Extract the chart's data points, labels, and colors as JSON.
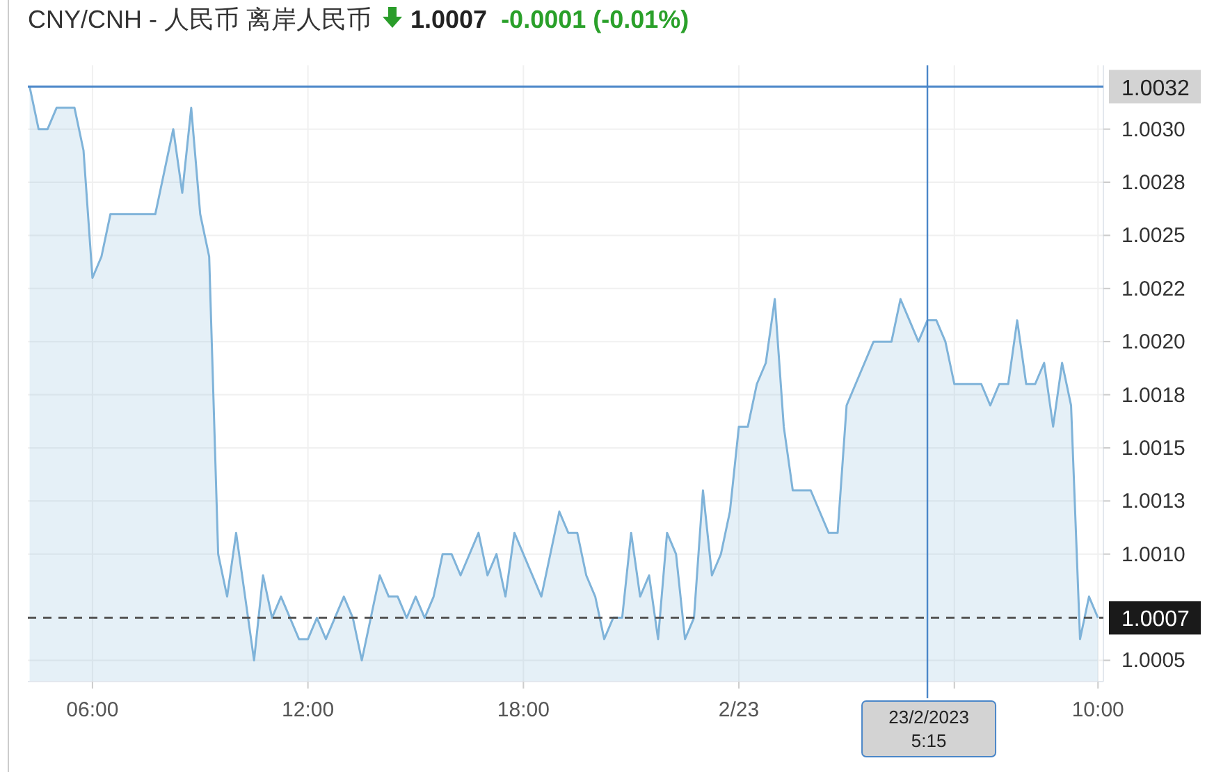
{
  "chart_data": {
    "type": "area",
    "title": "CNY/CNH - 人民币 离岸人民币",
    "annotations": [
      "1.0007",
      "-0.0001 (-0.01%)"
    ],
    "series": [
      {
        "color": "#7fb3d9",
        "x": [
          "2023-02-22T04:15",
          "2023-02-22T04:30",
          "2023-02-22T04:45",
          "2023-02-22T05:00",
          "2023-02-22T05:30",
          "2023-02-22T05:45",
          "2023-02-22T06:00",
          "2023-02-22T06:15",
          "2023-02-22T06:30",
          "2023-02-22T07:45",
          "2023-02-22T08:15",
          "2023-02-22T08:30",
          "2023-02-22T08:45",
          "2023-02-22T09:00",
          "2023-02-22T09:15",
          "2023-02-22T09:30",
          "2023-02-22T09:45",
          "2023-02-22T10:00",
          "2023-02-22T10:30",
          "2023-02-22T10:45",
          "2023-02-22T11:00",
          "2023-02-22T11:15",
          "2023-02-22T11:45",
          "2023-02-22T12:00",
          "2023-02-22T12:15",
          "2023-02-22T12:30",
          "2023-02-22T13:00",
          "2023-02-22T13:15",
          "2023-02-22T13:30",
          "2023-02-22T14:00",
          "2023-02-22T14:15",
          "2023-02-22T14:30",
          "2023-02-22T14:45",
          "2023-02-22T15:00",
          "2023-02-22T15:15",
          "2023-02-22T15:30",
          "2023-02-22T15:45",
          "2023-02-22T16:00",
          "2023-02-22T16:15",
          "2023-02-22T16:45",
          "2023-02-22T17:00",
          "2023-02-22T17:15",
          "2023-02-22T17:30",
          "2023-02-22T17:45",
          "2023-02-22T18:30",
          "2023-02-22T19:00",
          "2023-02-22T19:15",
          "2023-02-22T19:30",
          "2023-02-22T19:45",
          "2023-02-22T20:00",
          "2023-02-22T20:15",
          "2023-02-22T20:30",
          "2023-02-22T20:45",
          "2023-02-22T21:00",
          "2023-02-22T21:15",
          "2023-02-22T21:30",
          "2023-02-22T21:45",
          "2023-02-22T22:00",
          "2023-02-22T22:15",
          "2023-02-22T22:30",
          "2023-02-22T22:45",
          "2023-02-22T23:00",
          "2023-02-22T23:15",
          "2023-02-22T23:30",
          "2023-02-22T23:45",
          "2023-02-23T00:00",
          "2023-02-23T00:15",
          "2023-02-23T00:30",
          "2023-02-23T00:45",
          "2023-02-23T01:00",
          "2023-02-23T01:15",
          "2023-02-23T01:30",
          "2023-02-23T02:00",
          "2023-02-23T02:30",
          "2023-02-23T02:45",
          "2023-02-23T03:00",
          "2023-02-23T03:15",
          "2023-02-23T03:45",
          "2023-02-23T04:15",
          "2023-02-23T04:30",
          "2023-02-23T05:00",
          "2023-02-23T05:15",
          "2023-02-23T05:30",
          "2023-02-23T05:45",
          "2023-02-23T06:00",
          "2023-02-23T06:45",
          "2023-02-23T07:00",
          "2023-02-23T07:15",
          "2023-02-23T07:30",
          "2023-02-23T07:45",
          "2023-02-23T08:00",
          "2023-02-23T08:15",
          "2023-02-23T08:30",
          "2023-02-23T08:45",
          "2023-02-23T09:00",
          "2023-02-23T09:15",
          "2023-02-23T09:30",
          "2023-02-23T09:45",
          "2023-02-23T10:00"
        ],
        "values": [
          1.0032,
          1.003,
          1.003,
          1.0031,
          1.0031,
          1.0029,
          1.0023,
          1.0024,
          1.0026,
          1.0026,
          1.003,
          1.0027,
          1.0031,
          1.0026,
          1.0024,
          1.001,
          1.0008,
          1.0011,
          1.0005,
          1.0009,
          1.0007,
          1.0008,
          1.0006,
          1.0006,
          1.0007,
          1.0006,
          1.0008,
          1.0007,
          1.0005,
          1.0009,
          1.0008,
          1.0008,
          1.0007,
          1.0008,
          1.0007,
          1.0008,
          1.001,
          1.001,
          1.0009,
          1.0011,
          1.0009,
          1.001,
          1.0008,
          1.0011,
          1.0008,
          1.0012,
          1.0011,
          1.0011,
          1.0009,
          1.0008,
          1.0006,
          1.0007,
          1.0007,
          1.0011,
          1.0008,
          1.0009,
          1.0006,
          1.0011,
          1.001,
          1.0006,
          1.0007,
          1.0013,
          1.0009,
          1.001,
          1.0012,
          1.0016,
          1.0016,
          1.0018,
          1.0019,
          1.0022,
          1.0016,
          1.0013,
          1.0013,
          1.0011,
          1.0011,
          1.0017,
          1.0018,
          1.002,
          1.002,
          1.0022,
          1.002,
          1.0021,
          1.0021,
          1.002,
          1.0018,
          1.0018,
          1.0017,
          1.0018,
          1.0018,
          1.0021,
          1.0018,
          1.0018,
          1.0019,
          1.0016,
          1.0019,
          1.0017,
          1.0006,
          1.0008,
          1.0007
        ]
      }
    ],
    "xlim": [
      "2023-02-22T04:12",
      "2023-02-23T10:09"
    ],
    "xticks": [
      {
        "value": "2023-02-22T06:00",
        "label": "06:00"
      },
      {
        "value": "2023-02-22T12:00",
        "label": "12:00"
      },
      {
        "value": "2023-02-22T18:00",
        "label": "18:00"
      },
      {
        "value": "2023-02-23T00:00",
        "label": "2/23"
      },
      {
        "value": "2023-02-23T06:00",
        "label": null
      },
      {
        "value": "2023-02-23T10:00",
        "label": "10:00"
      }
    ],
    "ylim": [
      1.0004,
      1.0033
    ],
    "yticks": [
      1.0005,
      {
        "value": 1.001,
        "label": "1.0010"
      },
      {
        "value": 1.00125,
        "label": "1.0013"
      },
      1.0015,
      {
        "value": 1.00175,
        "label": "1.0018"
      },
      {
        "value": 1.002,
        "label": "1.0020"
      },
      {
        "value": 1.00225,
        "label": "1.0022"
      },
      1.0025,
      {
        "value": 1.00275,
        "label": "1.0028"
      },
      {
        "value": 1.003,
        "label": "1.0030"
      }
    ],
    "grid": true,
    "ref_lines": [
      {
        "axis": "y",
        "value": 1.0007,
        "label": "1.0007",
        "color": "#555555",
        "line_style": "dashed"
      },
      {
        "axis": "y",
        "value": 1.0032,
        "label": "1.0032",
        "color": "#4a86c8"
      },
      {
        "axis": "x",
        "value": "2023-02-23T05:15",
        "label": "23/2/2023 5:15",
        "color": "#4a86c8"
      }
    ]
  }
}
